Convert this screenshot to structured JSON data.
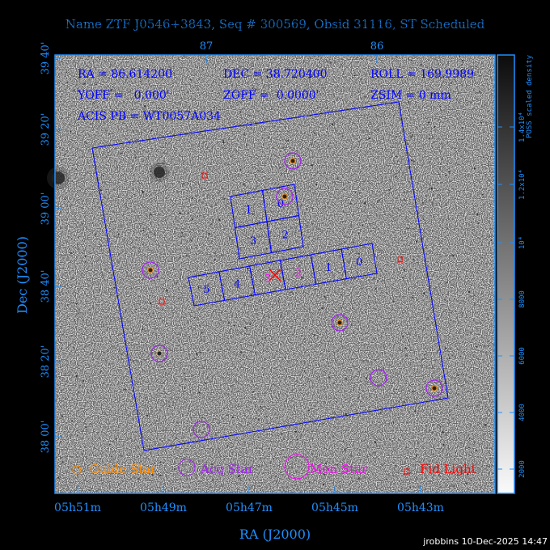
{
  "title": "Name ZTF J0546+3843, Seq # 300569, Obsid 31116, ST Scheduled",
  "info": {
    "ra": "RA = 86.614200",
    "dec": "DEC = 38.720400",
    "roll": "ROLL = 169.9989",
    "yoff": "YOFF =   0.000'",
    "zoff": "ZOFF =  0.0000'",
    "zsim": "ZSIM = 0 mm",
    "acis_pb": "ACIS PB = WT0057A034"
  },
  "chart_data": {
    "type": "scatter",
    "xlabel": "RA (J2000)",
    "ylabel": "Dec (J2000)",
    "x_ticks": [
      "05h51m",
      "05h49m",
      "05h47m",
      "05h45m",
      "05h43m"
    ],
    "top_ticks": [
      "87",
      "86"
    ],
    "y_ticks": [
      "39 40'",
      "39 20'",
      "39 00'",
      "38 40'",
      "38 20'",
      "38 00'"
    ],
    "colorbar": {
      "label": "POSS scaled density",
      "ticks": [
        "2000",
        "4000",
        "6000",
        "8000",
        "10⁴",
        "1.2x10⁴",
        "1.4x10⁴"
      ]
    },
    "s_array_chips": [
      "5",
      "4",
      "3",
      "2",
      "1",
      "0"
    ],
    "i_array_chips": [
      "1",
      "0",
      "3",
      "2"
    ],
    "legend": [
      {
        "label": "Guide Star",
        "color": "#ff8c00"
      },
      {
        "label": "Acq Star",
        "color": "#a020f0"
      },
      {
        "label": "Mon Star",
        "color": "#ff00ff"
      },
      {
        "label": "Fid Light",
        "color": "#ff0000"
      }
    ],
    "grid": false
  },
  "colors": {
    "axis": "#1e90ff",
    "acis": "#0000ff",
    "background": "#000000"
  },
  "footer": "jrobbins 10-Dec-2025 14:47"
}
